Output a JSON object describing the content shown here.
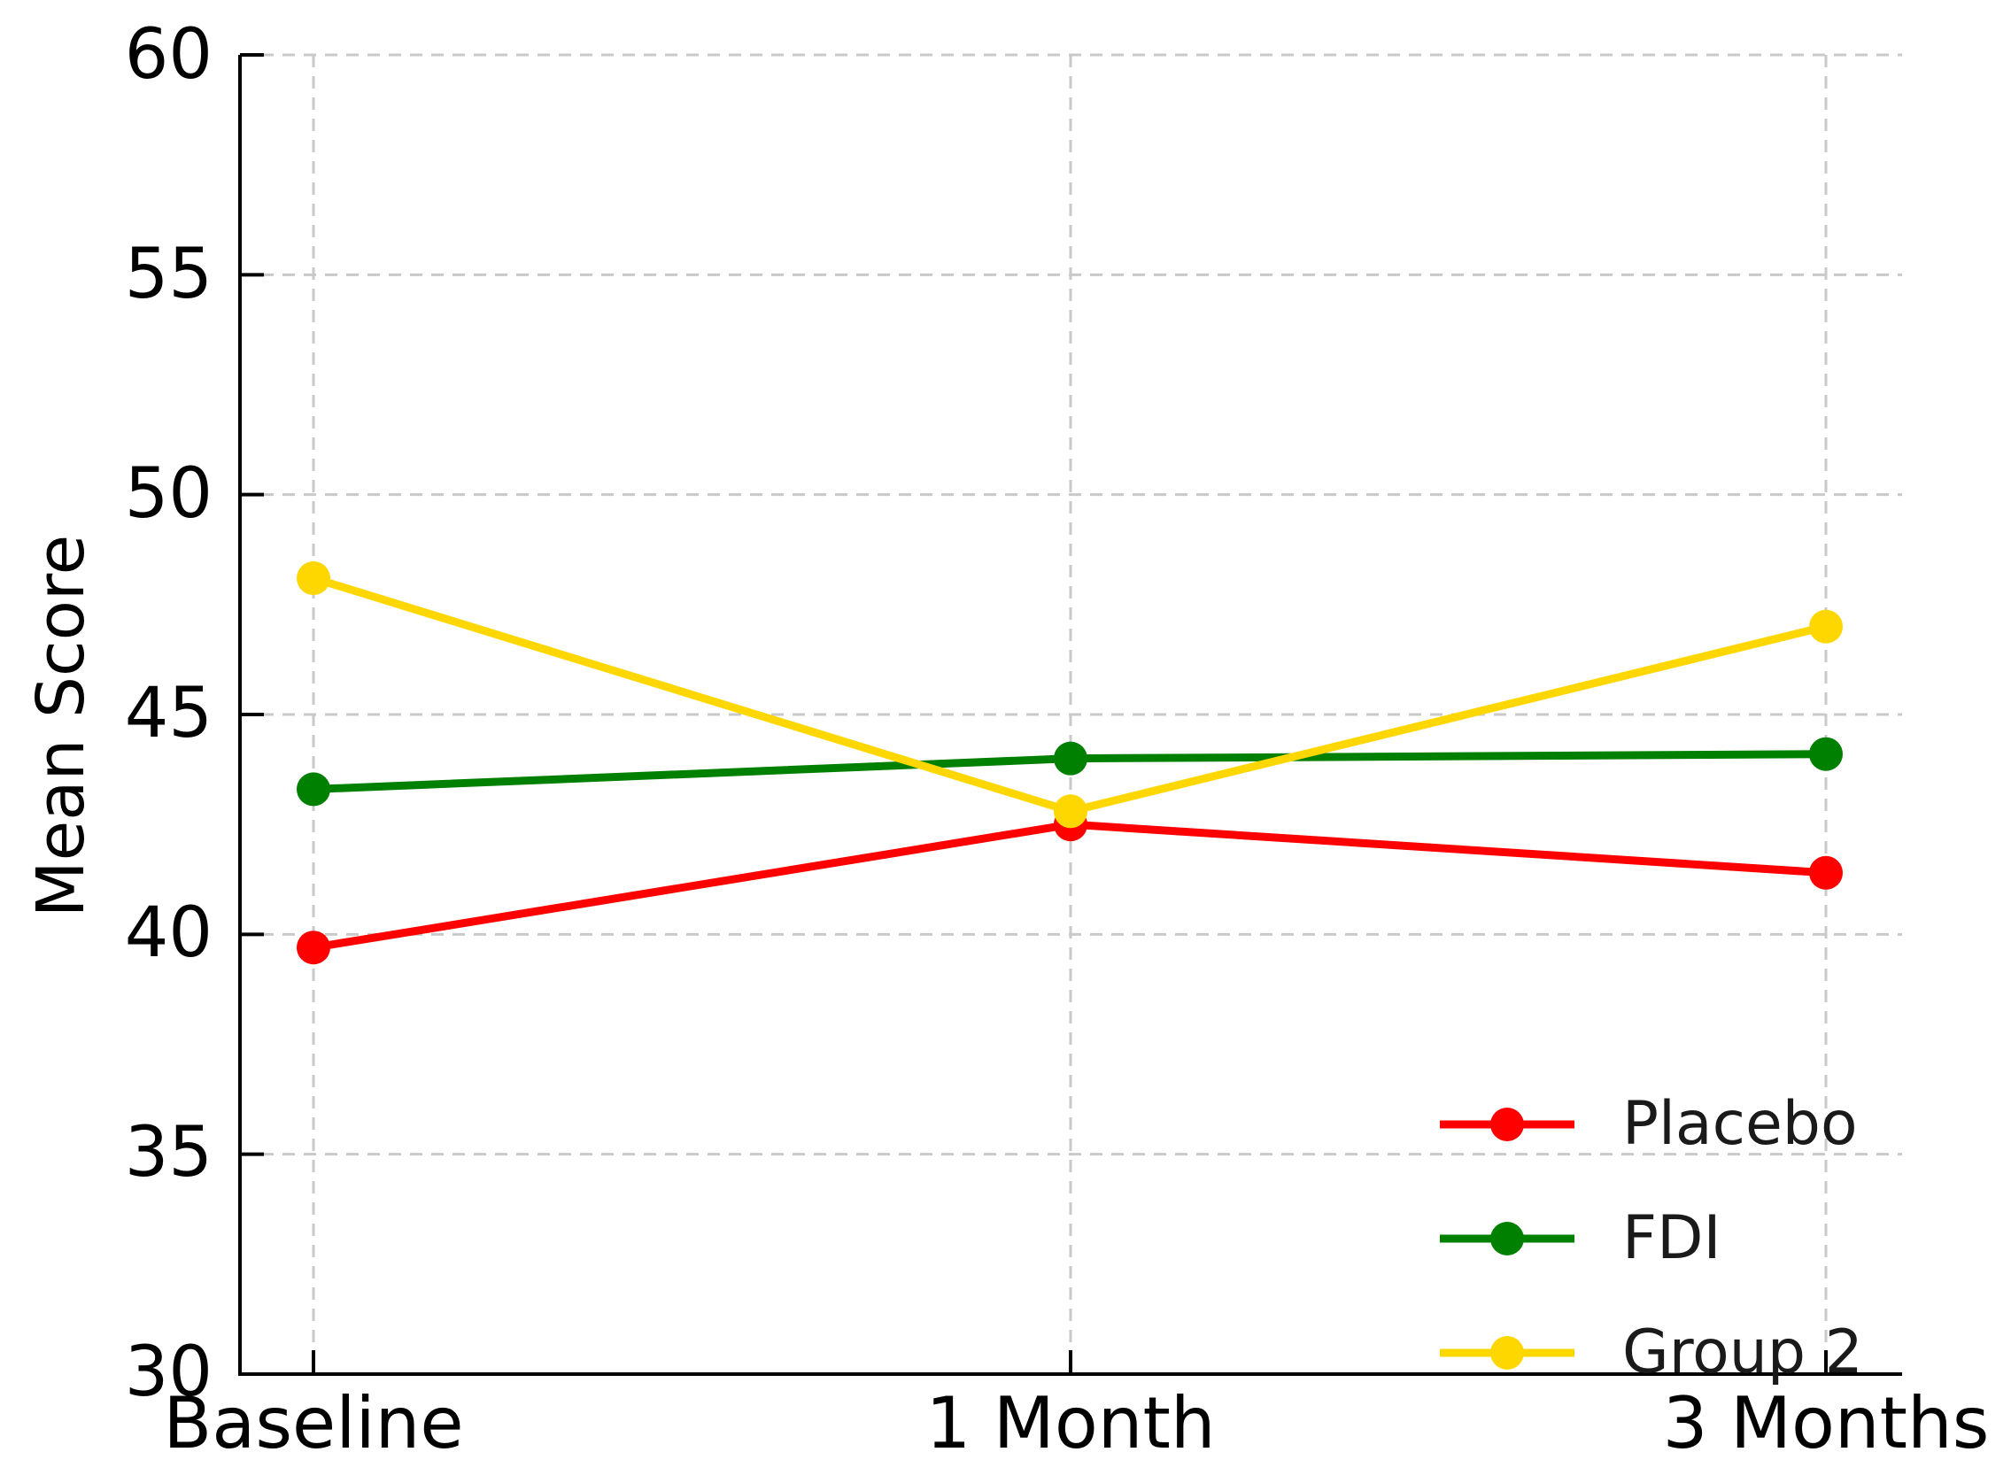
{
  "chart_data": {
    "type": "line",
    "title": "",
    "xlabel": "",
    "ylabel": "Mean Score",
    "categories": [
      "Baseline",
      "1 Month",
      "3 Months"
    ],
    "series": [
      {
        "name": "Placebo",
        "color": "#ff0000",
        "values": [
          39.7,
          42.5,
          41.4
        ]
      },
      {
        "name": "FDI",
        "color": "#008000",
        "values": [
          43.3,
          44.0,
          44.1
        ]
      },
      {
        "name": "Group 2",
        "color": "#ffd700",
        "values": [
          48.1,
          42.8,
          47.0
        ]
      }
    ],
    "ylim": [
      30,
      60
    ],
    "yticks": [
      30,
      35,
      40,
      45,
      50,
      55,
      60
    ],
    "ytick_labels": [
      "30",
      "35",
      "40",
      "45",
      "50",
      "55",
      "60"
    ],
    "grid": true,
    "grid_style": "dashed",
    "grid_color": "#c9c9c9",
    "spine_color": "#000000",
    "legend_position": "lower right",
    "legend_frame": false
  }
}
